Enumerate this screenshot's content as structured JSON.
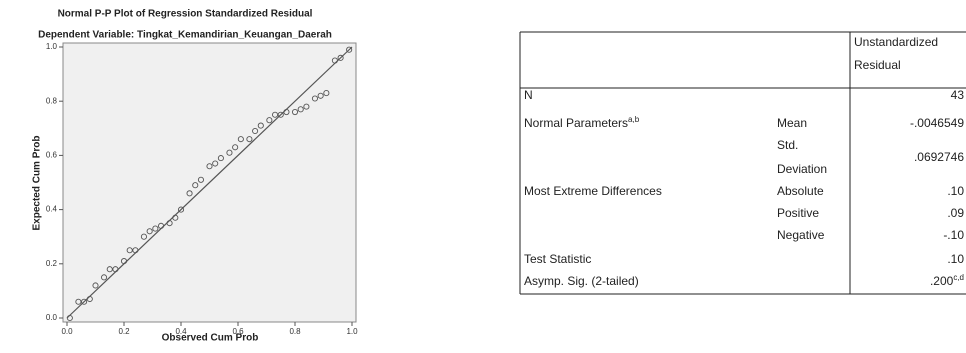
{
  "chart_data": {
    "type": "scatter",
    "title": "Normal P-P Plot of Regression Standardized Residual",
    "subtitle": "Dependent Variable: Tingkat_Kemandirian_Keuangan_Daerah",
    "x_label": "Observed Cum Prob",
    "y_label": "Expected Cum Prob",
    "xlim": [
      0,
      1
    ],
    "ylim": [
      0,
      1
    ],
    "xticks": [
      {
        "value": 0,
        "label": "0.0"
      },
      0.2,
      0.4,
      0.6,
      0.8,
      {
        "value": 1,
        "label": "1.0"
      }
    ],
    "yticks": [
      {
        "value": 0,
        "label": "0.0"
      },
      0.2,
      0.4,
      0.6,
      0.8,
      {
        "value": 1,
        "label": "1.0"
      }
    ],
    "reference_line": true,
    "color": "#555555",
    "background": "#f0f0f0",
    "series": [
      {
        "x": [
          0.01,
          0.04,
          0.06,
          0.08,
          0.1,
          0.13,
          0.15,
          0.17,
          0.2,
          0.22,
          0.24,
          0.27,
          0.29,
          0.31,
          0.33,
          0.36,
          0.38,
          0.4,
          0.43,
          0.45,
          0.47,
          0.5,
          0.52,
          0.54,
          0.57,
          0.59,
          0.61,
          0.64,
          0.66,
          0.68,
          0.71,
          0.73,
          0.75,
          0.77,
          0.8,
          0.82,
          0.84,
          0.87,
          0.89,
          0.91,
          0.94,
          0.96,
          0.99
        ],
        "values": [
          0.0,
          0.06,
          0.06,
          0.07,
          0.12,
          0.15,
          0.18,
          0.18,
          0.21,
          0.25,
          0.25,
          0.3,
          0.32,
          0.33,
          0.34,
          0.35,
          0.37,
          0.4,
          0.46,
          0.49,
          0.51,
          0.56,
          0.57,
          0.59,
          0.61,
          0.63,
          0.66,
          0.66,
          0.69,
          0.71,
          0.73,
          0.75,
          0.75,
          0.76,
          0.76,
          0.77,
          0.78,
          0.81,
          0.82,
          0.83,
          0.95,
          0.96,
          0.99
        ]
      }
    ]
  },
  "table": {
    "header": [
      "Unstandardized",
      "Residual"
    ],
    "rows": [
      {
        "label": "N",
        "value": "43"
      },
      {
        "label": "Normal Parameters",
        "label_sup": "a,b",
        "sub": [
          "Mean"
        ],
        "value": "-.0046549"
      },
      {
        "sub": [
          "Std.",
          "Deviation"
        ],
        "value": ".0692746"
      },
      {
        "label": "Most Extreme Differences",
        "sub": [
          "Absolute"
        ],
        "value": ".10"
      },
      {
        "sub": [
          "Positive"
        ],
        "value": ".09"
      },
      {
        "sub": [
          "Negative"
        ],
        "value": "-.10"
      },
      {
        "label": "Test Statistic",
        "value": ".10"
      },
      {
        "label": "Asymp. Sig. (2-tailed)",
        "value": ".200",
        "value_sup": "c,d"
      }
    ]
  }
}
